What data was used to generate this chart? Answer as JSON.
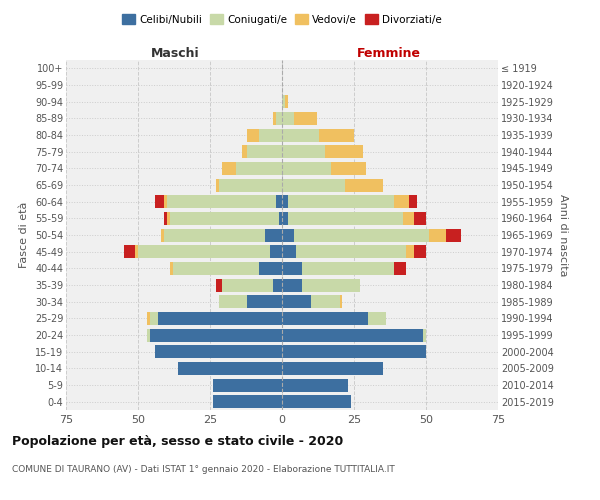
{
  "age_groups": [
    "0-4",
    "5-9",
    "10-14",
    "15-19",
    "20-24",
    "25-29",
    "30-34",
    "35-39",
    "40-44",
    "45-49",
    "50-54",
    "55-59",
    "60-64",
    "65-69",
    "70-74",
    "75-79",
    "80-84",
    "85-89",
    "90-94",
    "95-99",
    "100+"
  ],
  "birth_years": [
    "2015-2019",
    "2010-2014",
    "2005-2009",
    "2000-2004",
    "1995-1999",
    "1990-1994",
    "1985-1989",
    "1980-1984",
    "1975-1979",
    "1970-1974",
    "1965-1969",
    "1960-1964",
    "1955-1959",
    "1950-1954",
    "1945-1949",
    "1940-1944",
    "1935-1939",
    "1930-1934",
    "1925-1929",
    "1920-1924",
    "≤ 1919"
  ],
  "maschi": {
    "celibi": [
      24,
      24,
      36,
      44,
      46,
      43,
      12,
      3,
      8,
      4,
      6,
      1,
      2,
      0,
      0,
      0,
      0,
      0,
      0,
      0,
      0
    ],
    "coniugati": [
      0,
      0,
      0,
      0,
      1,
      3,
      10,
      18,
      30,
      46,
      35,
      38,
      38,
      22,
      16,
      12,
      8,
      2,
      0,
      0,
      0
    ],
    "vedovi": [
      0,
      0,
      0,
      0,
      0,
      1,
      0,
      0,
      1,
      1,
      1,
      1,
      1,
      1,
      5,
      2,
      4,
      1,
      0,
      0,
      0
    ],
    "divorziati": [
      0,
      0,
      0,
      0,
      0,
      0,
      0,
      2,
      0,
      4,
      0,
      1,
      3,
      0,
      0,
      0,
      0,
      0,
      0,
      0,
      0
    ]
  },
  "femmine": {
    "nubili": [
      24,
      23,
      35,
      50,
      49,
      30,
      10,
      7,
      7,
      5,
      4,
      2,
      2,
      0,
      0,
      0,
      0,
      0,
      0,
      0,
      0
    ],
    "coniugate": [
      0,
      0,
      0,
      0,
      1,
      6,
      10,
      20,
      32,
      38,
      47,
      40,
      37,
      22,
      17,
      15,
      13,
      4,
      1,
      0,
      0
    ],
    "vedove": [
      0,
      0,
      0,
      0,
      0,
      0,
      1,
      0,
      0,
      3,
      6,
      4,
      5,
      13,
      12,
      13,
      12,
      8,
      1,
      0,
      0
    ],
    "divorziate": [
      0,
      0,
      0,
      0,
      0,
      0,
      0,
      0,
      4,
      4,
      5,
      4,
      3,
      0,
      0,
      0,
      0,
      0,
      0,
      0,
      0
    ]
  },
  "colors": {
    "celibi": "#3d6fa0",
    "coniugati": "#c8d9a8",
    "vedovi": "#f0c060",
    "divorziati": "#c82020"
  },
  "xlim": 75,
  "title": "Popolazione per età, sesso e stato civile - 2020",
  "subtitle": "COMUNE DI TAURANO (AV) - Dati ISTAT 1° gennaio 2020 - Elaborazione TUTTITALIA.IT",
  "ylabel_left": "Fasce di età",
  "ylabel_right": "Anni di nascita",
  "xlabel_maschi": "Maschi",
  "xlabel_femmine": "Femmine",
  "legend_labels": [
    "Celibi/Nubili",
    "Coniugati/e",
    "Vedovi/e",
    "Divorziati/e"
  ],
  "background_color": "#f0f0f0"
}
